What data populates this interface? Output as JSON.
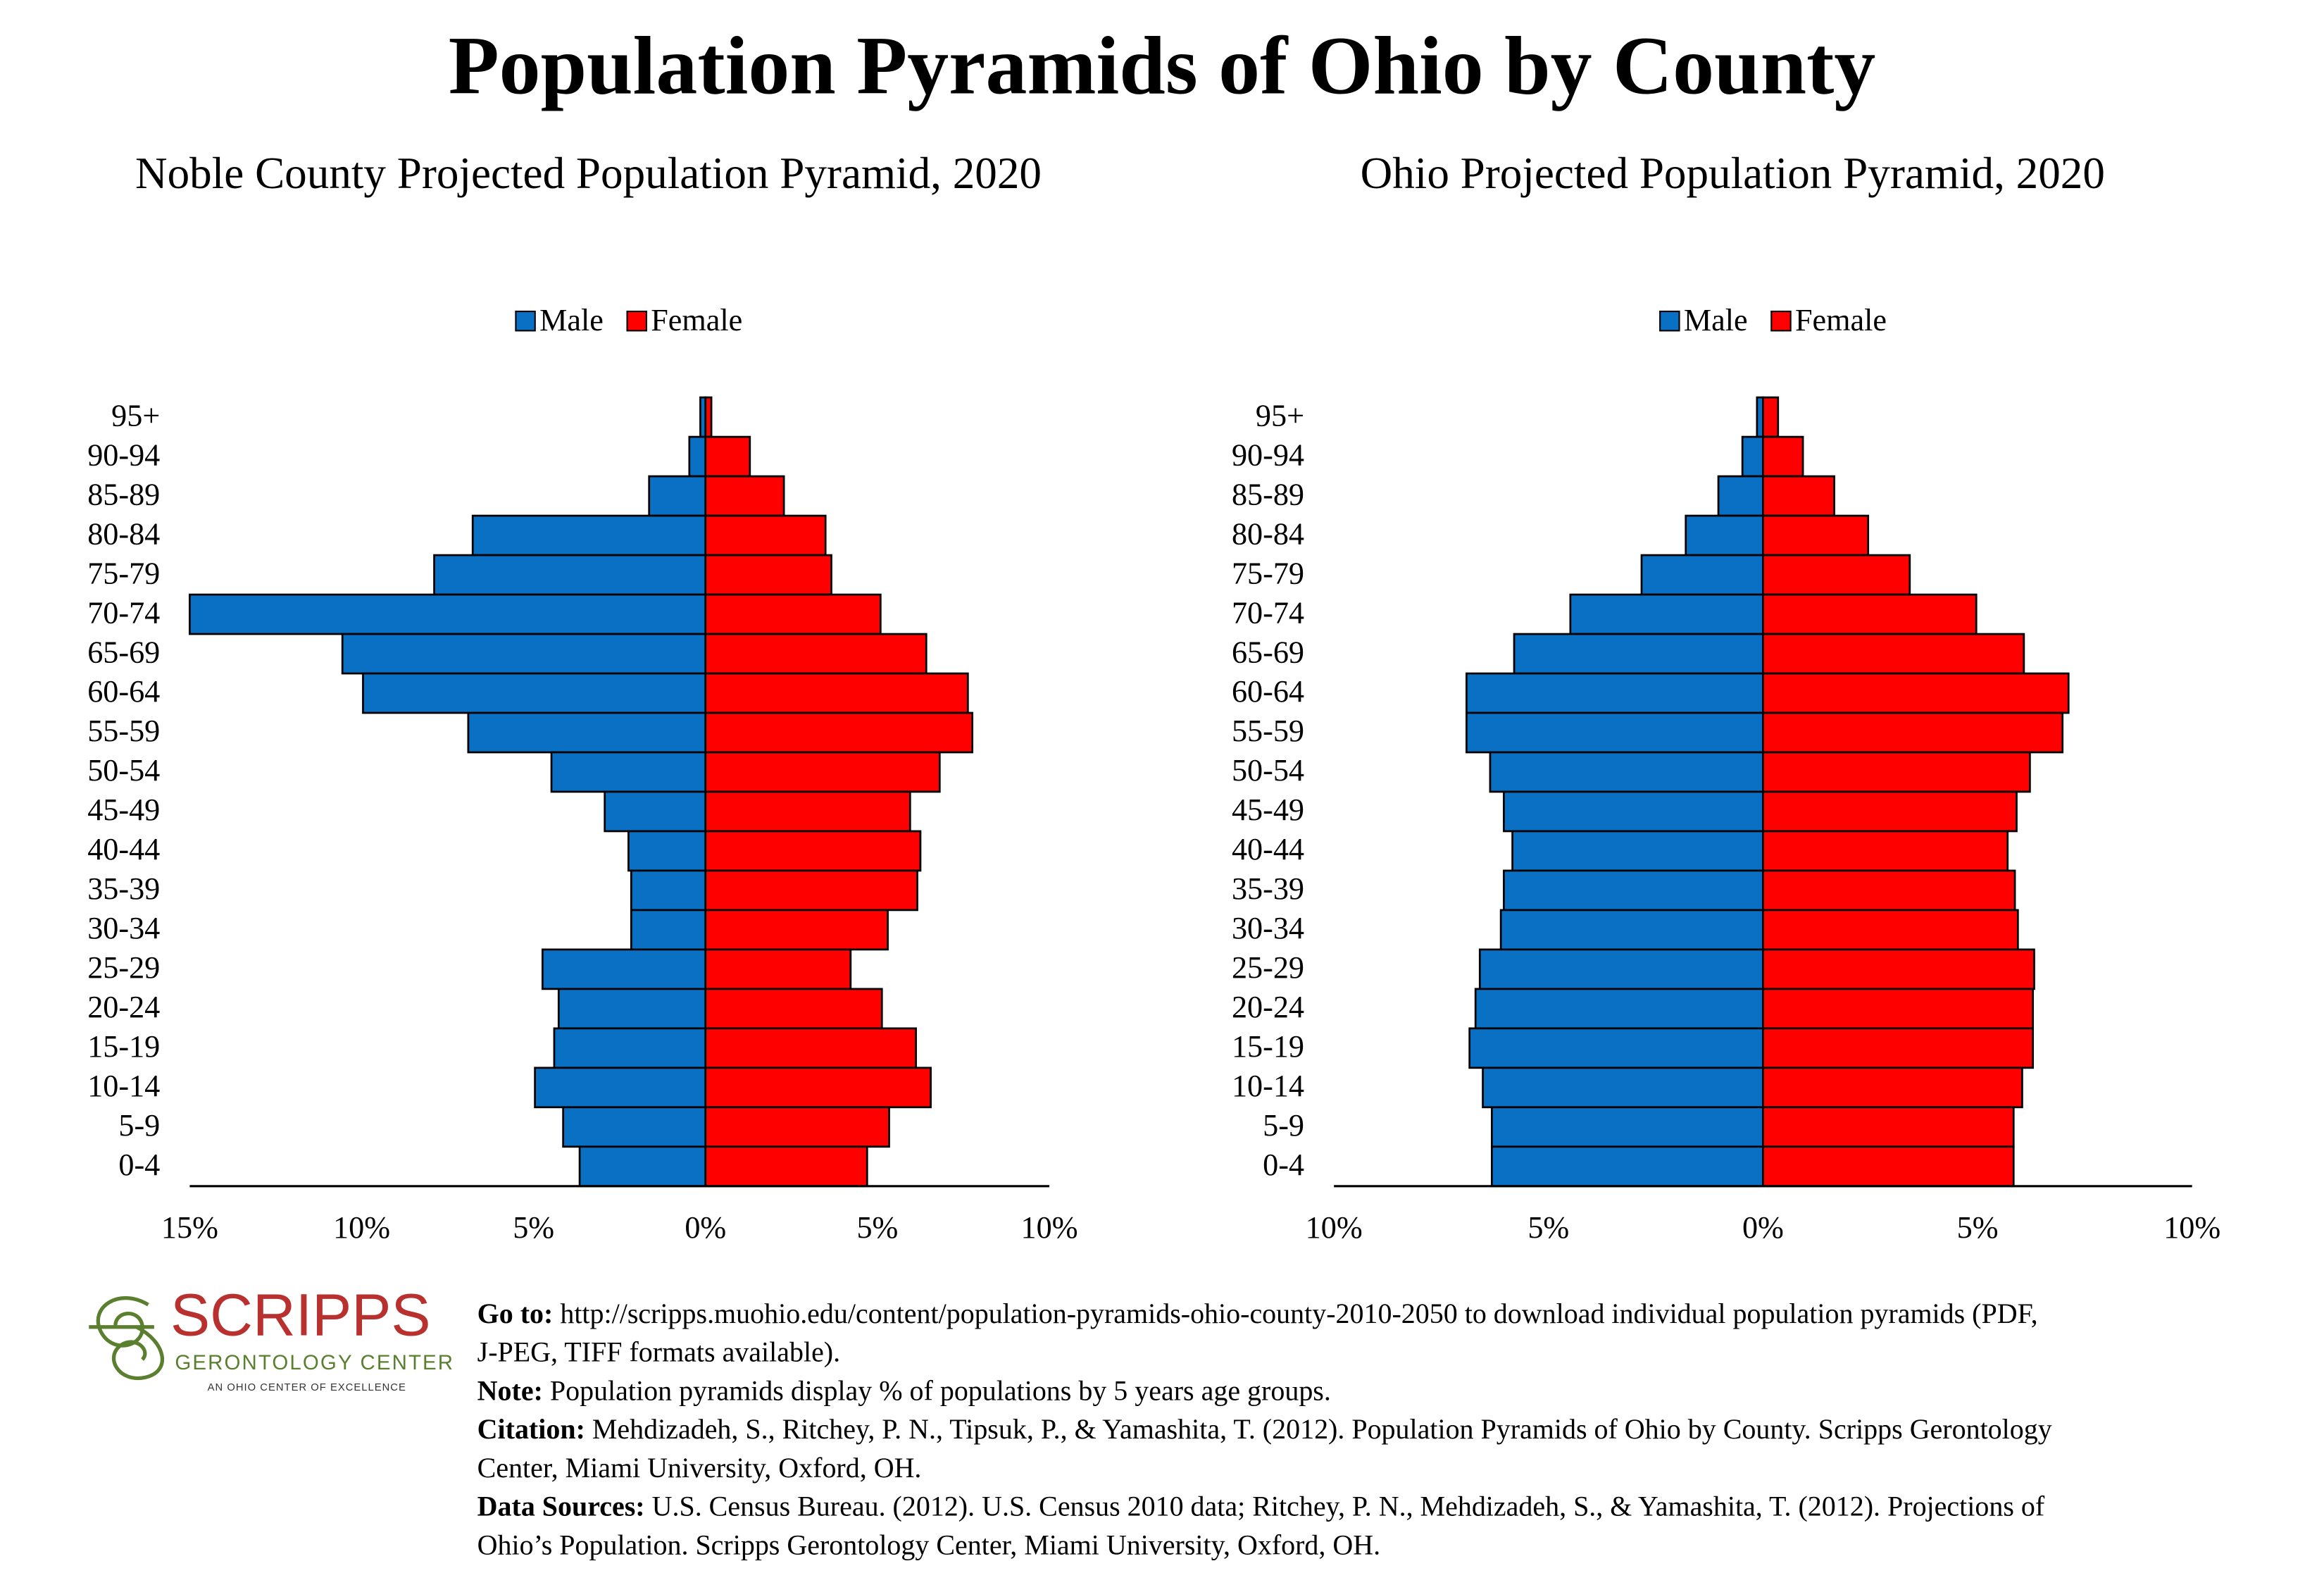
{
  "header": {
    "title": "Population Pyramids of Ohio by County"
  },
  "chart_data": [
    {
      "type": "pyramid",
      "title": "Noble County Projected Population Pyramid, 2020",
      "categories": [
        "95+",
        "90-94",
        "85-89",
        "80-84",
        "75-79",
        "70-74",
        "65-69",
        "60-64",
        "55-59",
        "50-54",
        "45-49",
        "40-44",
        "35-39",
        "30-34",
        "25-29",
        "20-24",
        "15-19",
        "10-14",
        "5-9",
        "0-4"
      ],
      "series": [
        {
          "name": "Male",
          "color": "#0a70c4",
          "values": [
            0.15,
            0.47,
            1.64,
            6.77,
            7.89,
            15.0,
            10.56,
            9.96,
            6.9,
            4.48,
            2.93,
            2.24,
            2.16,
            2.16,
            4.74,
            4.27,
            4.4,
            4.96,
            4.14,
            3.66
          ]
        },
        {
          "name": "Female",
          "color": "#ff0000",
          "values": [
            0.17,
            1.29,
            2.28,
            3.49,
            3.66,
            5.09,
            6.42,
            7.63,
            7.76,
            6.81,
            5.95,
            6.25,
            6.16,
            5.3,
            4.22,
            5.13,
            6.12,
            6.55,
            5.34,
            4.7
          ]
        }
      ],
      "xlim": [
        -15,
        10
      ],
      "xticks": [
        {
          "value": -15,
          "label": "15%"
        },
        {
          "value": -10,
          "label": "10%"
        },
        {
          "value": -5,
          "label": "5%"
        },
        {
          "value": 0,
          "label": "0%"
        },
        {
          "value": 5,
          "label": "5%"
        },
        {
          "value": 10,
          "label": "10%"
        }
      ],
      "legend": "top",
      "grid": false
    },
    {
      "type": "pyramid",
      "title": "Ohio Projected Population Pyramid, 2020",
      "categories": [
        "95+",
        "90-94",
        "85-89",
        "80-84",
        "75-79",
        "70-74",
        "65-69",
        "60-64",
        "55-59",
        "50-54",
        "45-49",
        "40-44",
        "35-39",
        "30-34",
        "25-29",
        "20-24",
        "15-19",
        "10-14",
        "5-9",
        "0-4"
      ],
      "series": [
        {
          "name": "Male",
          "color": "#0a70c4",
          "values": [
            0.14,
            0.48,
            1.04,
            1.8,
            2.83,
            4.49,
            5.8,
            6.91,
            6.91,
            6.36,
            6.04,
            5.84,
            6.04,
            6.11,
            6.6,
            6.7,
            6.84,
            6.53,
            6.32,
            6.32
          ]
        },
        {
          "name": "Female",
          "color": "#ff0000",
          "values": [
            0.35,
            0.93,
            1.66,
            2.45,
            3.42,
            4.97,
            6.08,
            7.12,
            6.98,
            6.22,
            5.91,
            5.7,
            5.87,
            5.94,
            6.32,
            6.29,
            6.29,
            6.04,
            5.84,
            5.84
          ]
        }
      ],
      "xlim": [
        -10,
        10
      ],
      "xticks": [
        {
          "value": -10,
          "label": "10%"
        },
        {
          "value": -5,
          "label": "5%"
        },
        {
          "value": 0,
          "label": "0%"
        },
        {
          "value": 5,
          "label": "5%"
        },
        {
          "value": 10,
          "label": "10%"
        }
      ],
      "legend": "top",
      "grid": false
    }
  ],
  "logo": {
    "name": "SCRIPPS",
    "line1": "GERONTOLOGY CENTER",
    "line2": "AN OHIO CENTER OF EXCELLENCE"
  },
  "footer": [
    {
      "label": "Go to:",
      "lines": [
        "http://scripps.muohio.edu/content/population-pyramids-ohio-county-2010-2050 to download individual population pyramids (PDF,",
        "J-PEG, TIFF formats available)."
      ]
    },
    {
      "label": "Note:",
      "lines": [
        "Population pyramids display % of populations by 5 years age groups."
      ]
    },
    {
      "label": "Citation:",
      "lines": [
        "Mehdizadeh, S., Ritchey, P. N., Tipsuk, P., & Yamashita, T. (2012). Population Pyramids of Ohio by County. Scripps Gerontology",
        "Center, Miami University, Oxford, OH."
      ]
    },
    {
      "label": "Data Sources:",
      "lines": [
        "U.S. Census Bureau. (2012). U.S. Census 2010 data; Ritchey, P. N., Mehdizadeh, S., & Yamashita, T. (2012). Projections of",
        "Ohio’s Population. Scripps Gerontology Center, Miami University, Oxford, OH."
      ]
    }
  ]
}
